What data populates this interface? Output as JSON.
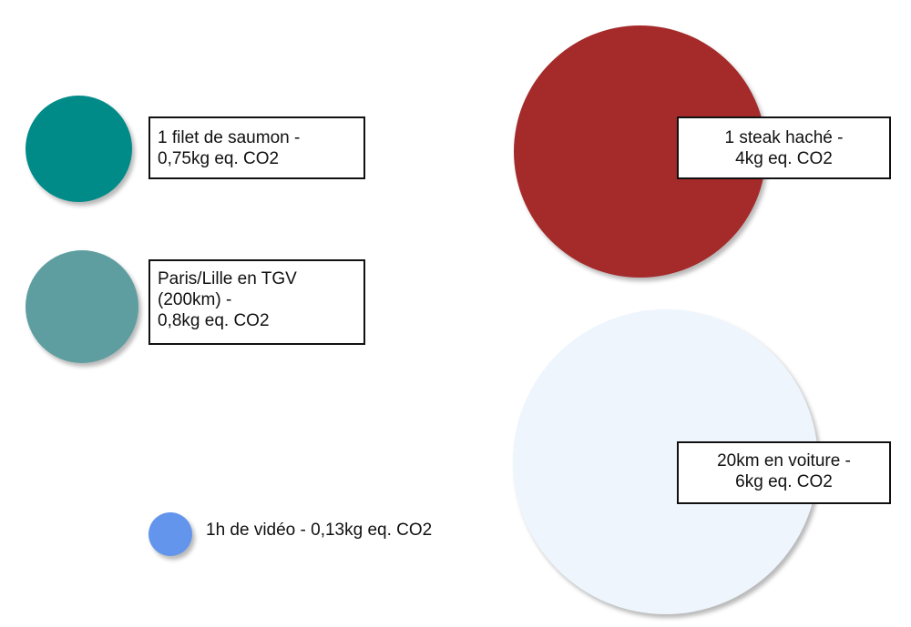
{
  "items": {
    "saumon": {
      "lines": [
        "1 filet de saumon -",
        "0,75kg eq. CO2"
      ],
      "color": "#008B89",
      "co2_kg": 0.75
    },
    "tgv": {
      "lines": [
        "Paris/Lille en TGV",
        "(200km) -",
        "0,8kg eq. CO2"
      ],
      "color": "#5F9EA0",
      "co2_kg": 0.8
    },
    "video": {
      "text": "1h de vidéo - 0,13kg eq. CO2",
      "color": "#6495ED",
      "co2_kg": 0.13
    },
    "steak": {
      "lines": [
        "1 steak haché -",
        "4kg eq. CO2"
      ],
      "color": "#A52A2A",
      "co2_kg": 4
    },
    "voiture": {
      "lines": [
        "20km en voiture -",
        "6kg eq. CO2"
      ],
      "color": "#EEF5FD",
      "co2_kg": 6
    }
  }
}
